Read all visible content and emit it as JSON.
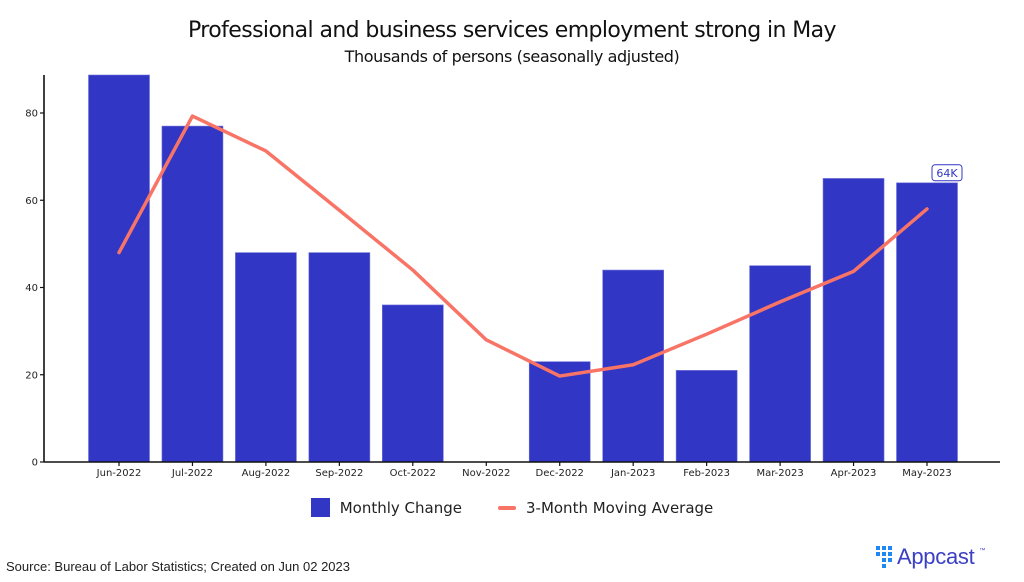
{
  "chart_data": {
    "type": "bar",
    "title": "Professional and business services employment strong in May",
    "subtitle": "Thousands of persons (seasonally adjusted)",
    "xlabel": "",
    "ylabel": "",
    "categories": [
      "Jun-2022",
      "Jul-2022",
      "Aug-2022",
      "Sep-2022",
      "Oct-2022",
      "Nov-2022",
      "Dec-2022",
      "Jan-2023",
      "Feb-2023",
      "Mar-2023",
      "Apr-2023",
      "May-2023"
    ],
    "series": [
      {
        "name": "Monthly Change",
        "type": "bar",
        "color": "#3236c4",
        "values": [
          89,
          77,
          48,
          48,
          36,
          0,
          23,
          44,
          21,
          45,
          65,
          64
        ]
      },
      {
        "name": "3-Month Moving Average",
        "type": "line",
        "color": "#f87466",
        "values": [
          48,
          79.3,
          71.3,
          57.7,
          44,
          28,
          19.7,
          22.3,
          29.3,
          36.7,
          43.7,
          58
        ]
      }
    ],
    "yticks": [
      0,
      20,
      40,
      60,
      80
    ],
    "ylim": [
      0,
      89
    ],
    "grid": false,
    "legend_position": "bottom",
    "annotation": {
      "category": "May-2023",
      "text": "64K"
    }
  },
  "legend": {
    "bar_label": "Monthly Change",
    "line_label": "3-Month Moving Average"
  },
  "footer": {
    "source": "Source: Bureau of Labor Statistics; Created on Jun 02 2023",
    "brand": "Appcast",
    "brand_tm": "™"
  }
}
